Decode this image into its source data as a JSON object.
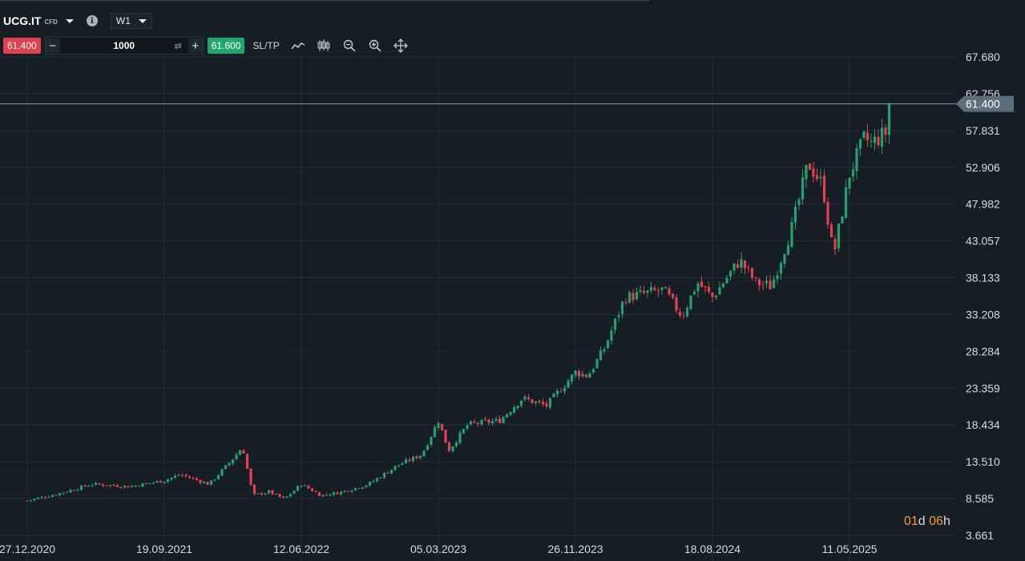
{
  "header": {
    "symbol": "UCG.IT",
    "symbol_type": "CFD",
    "info_icon": "i",
    "timeframe": "W1"
  },
  "trade_bar": {
    "sell_price": "61.400",
    "quantity": "1000",
    "buy_price": "61.600",
    "sltp_label": "SL/TP",
    "tools": [
      "line-chart-icon",
      "candlestick-settings-icon",
      "zoom-out-icon",
      "zoom-in-icon",
      "crosshair-move-icon"
    ]
  },
  "colors": {
    "background": "#161d24",
    "grid": "#222b33",
    "up": "#26a06e",
    "down": "#e0414f",
    "text": "#d5dbe1",
    "price_tag": "#5d6d79",
    "timer": "#f0a035"
  },
  "countdown": {
    "days": "01",
    "days_unit": "d",
    "hours": "06",
    "hours_unit": "h"
  },
  "chart_data": {
    "type": "candlestick",
    "timeframe": "W1",
    "current_price": 61.4,
    "price_label": "61.400",
    "ylim": [
      3.661,
      67.68
    ],
    "y_ticks": [
      "67.680",
      "62.756",
      "57.831",
      "52.906",
      "47.982",
      "43.057",
      "38.133",
      "33.208",
      "28.284",
      "23.359",
      "18.434",
      "13.510",
      "8.585",
      "3.661"
    ],
    "x_ticks": [
      "27.12.2020",
      "19.09.2021",
      "12.06.2022",
      "05.03.2023",
      "26.11.2023",
      "18.08.2024",
      "11.05.2025"
    ],
    "path": [
      [
        "2020-12-27",
        8.3
      ],
      [
        "2021-03-01",
        9.3
      ],
      [
        "2021-05-01",
        10.5
      ],
      [
        "2021-07-15",
        10.2
      ],
      [
        "2021-09-19",
        11.0
      ],
      [
        "2021-10-20",
        11.8
      ],
      [
        "2021-12-15",
        10.5
      ],
      [
        "2022-01-25",
        13.5
      ],
      [
        "2022-02-18",
        15.5
      ],
      [
        "2022-03-10",
        9.0
      ],
      [
        "2022-04-10",
        9.5
      ],
      [
        "2022-05-10",
        8.5
      ],
      [
        "2022-06-12",
        10.5
      ],
      [
        "2022-07-20",
        9.0
      ],
      [
        "2022-09-01",
        9.5
      ],
      [
        "2022-10-20",
        10.5
      ],
      [
        "2022-12-15",
        13.0
      ],
      [
        "2023-02-01",
        14.5
      ],
      [
        "2023-03-05",
        19.0
      ],
      [
        "2023-03-25",
        15.0
      ],
      [
        "2023-05-01",
        18.5
      ],
      [
        "2023-07-01",
        19.0
      ],
      [
        "2023-08-15",
        22.0
      ],
      [
        "2023-10-01",
        21.0
      ],
      [
        "2023-11-26",
        25.5
      ],
      [
        "2023-12-20",
        25.0
      ],
      [
        "2024-01-20",
        28.5
      ],
      [
        "2024-03-01",
        35.5
      ],
      [
        "2024-05-15",
        36.5
      ],
      [
        "2024-06-20",
        33.0
      ],
      [
        "2024-07-20",
        37.5
      ],
      [
        "2024-08-18",
        35.5
      ],
      [
        "2024-10-10",
        40.5
      ],
      [
        "2024-11-10",
        37.5
      ],
      [
        "2024-12-10",
        37.0
      ],
      [
        "2025-01-20",
        45.0
      ],
      [
        "2025-02-20",
        53.5
      ],
      [
        "2025-03-20",
        50.5
      ],
      [
        "2025-04-10",
        41.0
      ],
      [
        "2025-05-11",
        52.0
      ],
      [
        "2025-06-10",
        57.0
      ],
      [
        "2025-06-20",
        56.0
      ],
      [
        "2025-07-20",
        57.5
      ],
      [
        "2025-07-28",
        61.4
      ]
    ]
  }
}
